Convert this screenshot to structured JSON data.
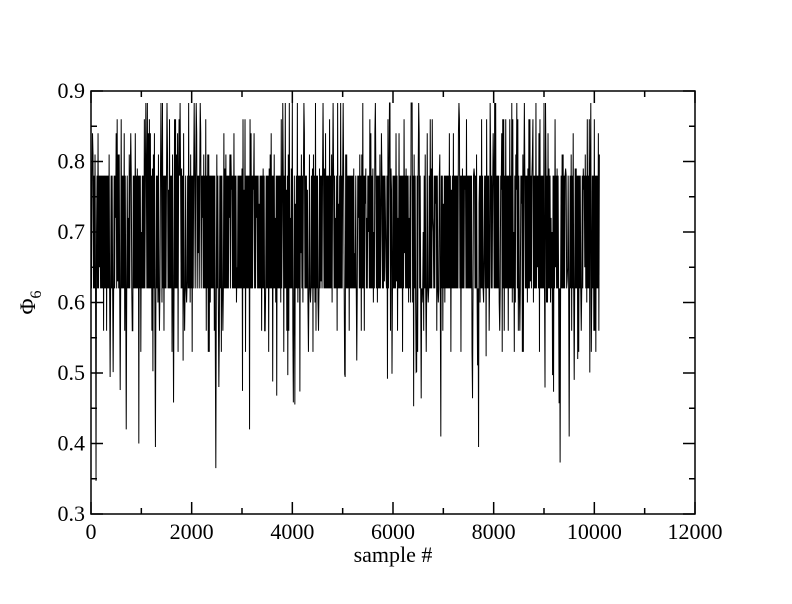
{
  "chart_data": {
    "type": "line",
    "title": "",
    "xlabel": "sample #",
    "ylabel_main": "Φ",
    "ylabel_sub": "6",
    "xlim": [
      0,
      12000
    ],
    "ylim": [
      0.3,
      0.9
    ],
    "x_ticks": [
      0,
      2000,
      4000,
      6000,
      8000,
      10000,
      12000
    ],
    "x_tick_labels": [
      "0",
      "2000",
      "4000",
      "6000",
      "8000",
      "10000",
      "12000"
    ],
    "y_ticks": [
      0.3,
      0.4,
      0.5,
      0.6,
      0.7,
      0.8,
      0.9
    ],
    "y_tick_labels": [
      "0.3",
      "0.4",
      "0.5",
      "0.6",
      "0.7",
      "0.8",
      "0.9"
    ],
    "grid": false,
    "legend": "none",
    "series": [
      {
        "color": "#000000",
        "x_start": 0,
        "x_end": 10100,
        "n_samples": 10100,
        "typical_range": [
          0.52,
          0.84
        ],
        "max_value": 0.883,
        "min_value": 0.347,
        "notable_lows": [
          {
            "x": 100,
            "y": 0.347
          },
          {
            "x": 700,
            "y": 0.42
          },
          {
            "x": 950,
            "y": 0.4
          },
          {
            "x": 1280,
            "y": 0.395
          },
          {
            "x": 2480,
            "y": 0.365
          },
          {
            "x": 3150,
            "y": 0.42
          },
          {
            "x": 6950,
            "y": 0.41
          },
          {
            "x": 7700,
            "y": 0.395
          },
          {
            "x": 9320,
            "y": 0.373
          },
          {
            "x": 9500,
            "y": 0.41
          }
        ]
      }
    ]
  }
}
